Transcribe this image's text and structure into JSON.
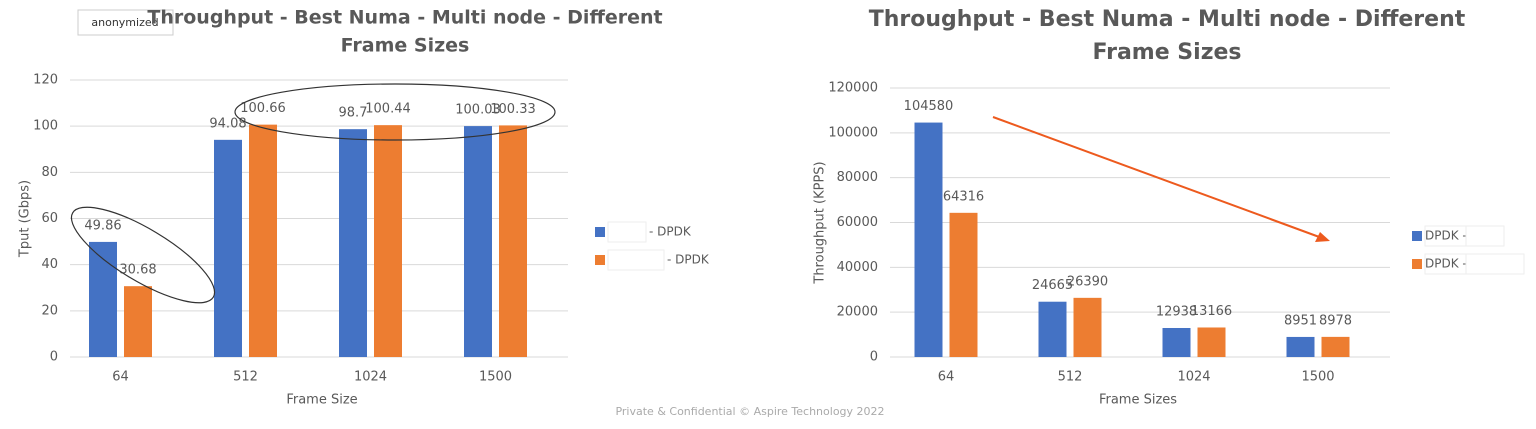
{
  "badge": "anonymized",
  "footer": "Private & Confidential © Aspire Technology 2022",
  "chart_data": [
    {
      "type": "bar",
      "title": [
        "Throughput - Best Numa - Multi node - Different",
        "Frame Sizes"
      ],
      "x_label": "Frame Size",
      "y_label": "Tput (Gbps)",
      "categories": [
        "64",
        "512",
        "1024",
        "1500"
      ],
      "series": [
        {
          "name": "- DPDK",
          "color": "#4472c4",
          "values": [
            49.86,
            94.08,
            98.7,
            100.03
          ]
        },
        {
          "name": "- DPDK",
          "color": "#ed7d31",
          "values": [
            30.68,
            100.66,
            100.44,
            100.33
          ]
        }
      ],
      "ylim": [
        0,
        120
      ],
      "yticks": [
        0,
        20,
        40,
        60,
        80,
        100,
        120
      ],
      "grid": true,
      "legend": "right"
    },
    {
      "type": "bar",
      "title": [
        "Throughput - Best Numa - Multi node - Different",
        "Frame Sizes"
      ],
      "x_label": "Frame Sizes",
      "y_label": "Throughput (KPPS)",
      "categories": [
        "64",
        "512",
        "1024",
        "1500"
      ],
      "series": [
        {
          "name": "DPDK -",
          "color": "#4472c4",
          "values": [
            104580,
            24665,
            12938,
            8951
          ]
        },
        {
          "name": "DPDK -",
          "color": "#ed7d31",
          "values": [
            64316,
            26390,
            13166,
            8978
          ]
        }
      ],
      "ylim": [
        0,
        120000
      ],
      "yticks": [
        0,
        20000,
        40000,
        60000,
        80000,
        100000,
        120000
      ],
      "grid": true,
      "legend": "right"
    }
  ]
}
